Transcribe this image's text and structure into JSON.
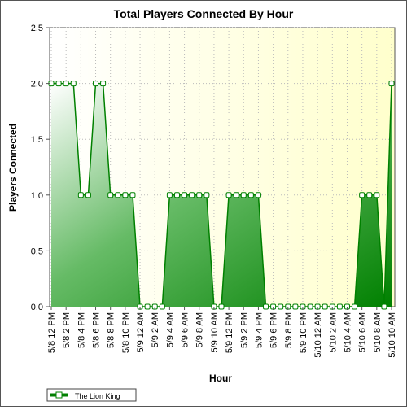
{
  "chart_data": {
    "type": "area",
    "title": "Total Players Connected By Hour",
    "xlabel": "Hour",
    "ylabel": "Players Connected",
    "ylim": [
      0,
      2.5
    ],
    "yticks": [
      "0.0",
      "0.5",
      "1.0",
      "1.5",
      "2.0",
      "2.5"
    ],
    "x_tick_labels": [
      "5/8 12 PM",
      "5/8 2 PM",
      "5/8 4 PM",
      "5/8 6 PM",
      "5/8 8 PM",
      "5/8 10 PM",
      "5/9 12 AM",
      "5/9 2 AM",
      "5/9 4 AM",
      "5/9 6 AM",
      "5/9 8 AM",
      "5/9 10 AM",
      "5/9 12 PM",
      "5/9 2 PM",
      "5/9 4 PM",
      "5/9 6 PM",
      "5/9 8 PM",
      "5/9 10 PM",
      "5/10 12 AM",
      "5/10 2 AM",
      "5/10 4 AM",
      "5/10 6 AM",
      "5/10 8 AM",
      "5/10 10 AM"
    ],
    "grid": true,
    "legend_position": "bottom-left",
    "series": [
      {
        "name": "The Lion King",
        "color": "#008000",
        "values": [
          2,
          2,
          2,
          2,
          1,
          1,
          2,
          2,
          1,
          1,
          1,
          1,
          0,
          0,
          0,
          0,
          1,
          1,
          1,
          1,
          1,
          1,
          0,
          0,
          1,
          1,
          1,
          1,
          1,
          0,
          0,
          0,
          0,
          0,
          0,
          0,
          0,
          0,
          0,
          0,
          0,
          0,
          1,
          1,
          1,
          0,
          2
        ]
      }
    ]
  }
}
